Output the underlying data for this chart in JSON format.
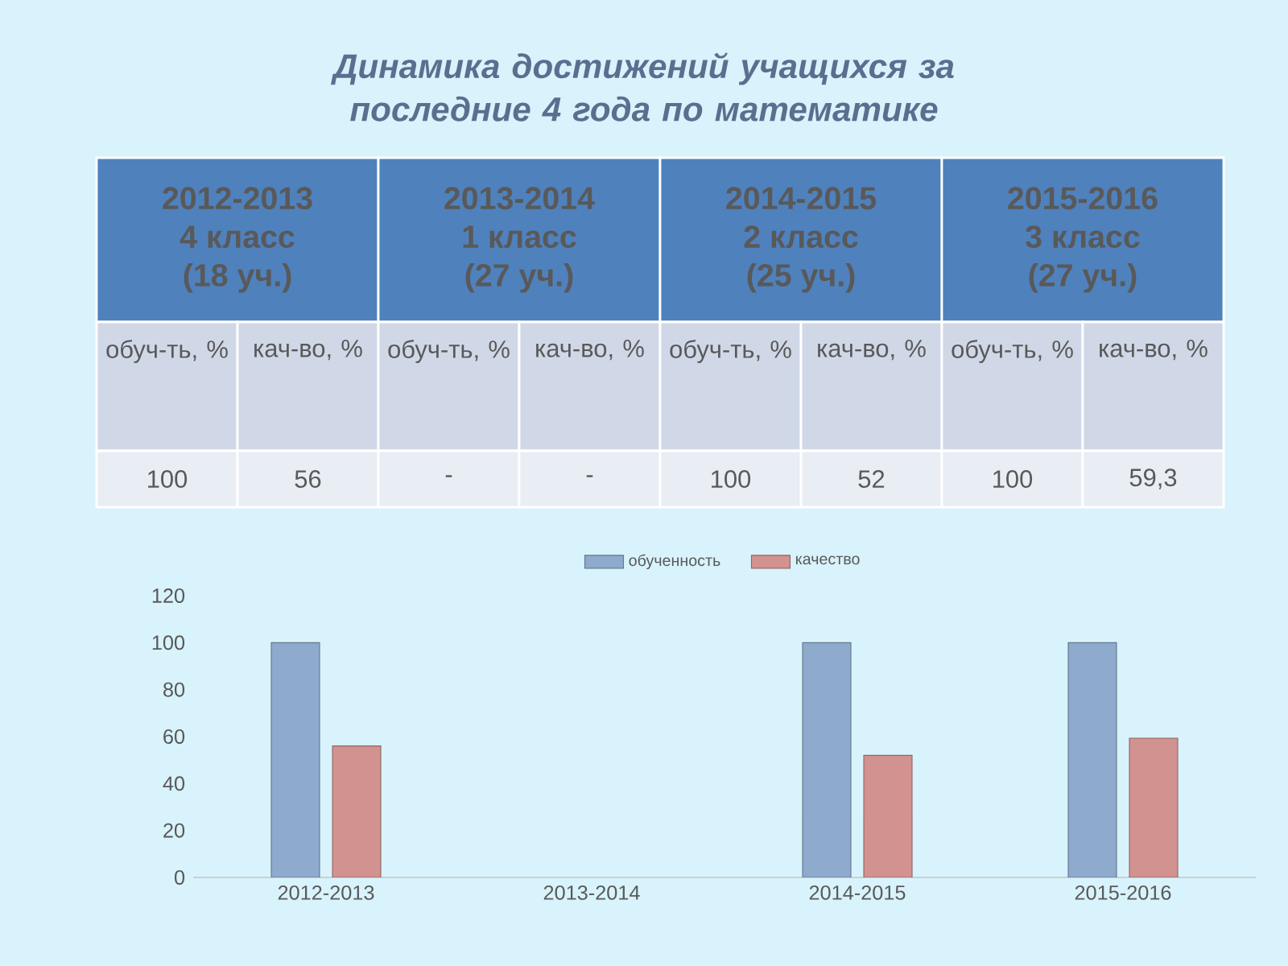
{
  "chart_data": {
    "type": "bar",
    "title": "Динамика достижений учащихся за последние 4 года по математике",
    "categories": [
      "2012-2013",
      "2013-2014",
      "2014-2015",
      "2015-2016"
    ],
    "series": [
      {
        "name": "обученность",
        "color": "#8eaacd",
        "values": [
          100,
          null,
          100,
          100
        ]
      },
      {
        "name": "качество",
        "color": "#d29290",
        "values": [
          56,
          null,
          52,
          59.3
        ]
      }
    ],
    "annotations": [
      "4 класс",
      "(18 уч.)",
      "1 класс",
      "(27 уч.)",
      "2 класс",
      "(25 уч.)",
      "3 класс",
      "(27 уч.)",
      "обуч-ть, %",
      "кач-во, %",
      "обуч-ть, %",
      "кач-во, %",
      "обуч-ть, %",
      "кач-во, %",
      "обуч-ть, %",
      "кач-во, %",
      "100",
      "56",
      "-",
      "-",
      "100",
      "52",
      "100",
      "59,3"
    ],
    "ylim": [
      0,
      120
    ],
    "yticks": [
      0,
      20,
      40,
      60,
      80,
      100,
      120
    ],
    "legend": "top",
    "grid": false
  }
}
